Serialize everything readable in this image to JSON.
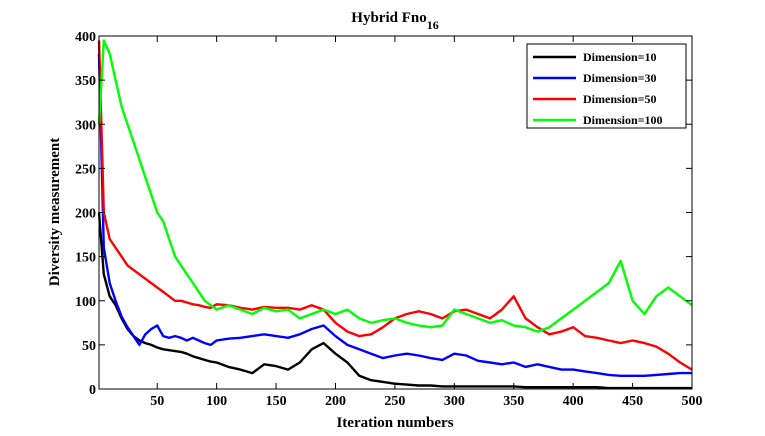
{
  "chart_data": {
    "type": "line",
    "title": "Hybrid Fno",
    "title_subscript": "16",
    "xlabel": "Iteration numbers",
    "ylabel": "Diversity measurement",
    "xlim": [
      1,
      500
    ],
    "ylim": [
      0,
      400
    ],
    "xticks": [
      "50",
      "100",
      "150",
      "200",
      "250",
      "300",
      "350",
      "400",
      "450",
      "500"
    ],
    "yticks": [
      "0",
      "50",
      "100",
      "150",
      "200",
      "250",
      "300",
      "350",
      "400"
    ],
    "legend_position": "top-right",
    "grid": false,
    "x": [
      1,
      5,
      10,
      15,
      20,
      25,
      30,
      35,
      40,
      45,
      50,
      55,
      60,
      65,
      70,
      75,
      80,
      85,
      90,
      95,
      100,
      110,
      120,
      130,
      140,
      150,
      160,
      170,
      180,
      190,
      200,
      210,
      220,
      230,
      240,
      250,
      260,
      270,
      280,
      290,
      300,
      310,
      320,
      330,
      340,
      350,
      360,
      370,
      380,
      390,
      400,
      410,
      420,
      430,
      440,
      450,
      460,
      470,
      480,
      490,
      500
    ],
    "series": [
      {
        "name": "Dimension=10",
        "color": "#000000",
        "values": [
          200,
          130,
          105,
          95,
          80,
          68,
          60,
          55,
          52,
          50,
          47,
          45,
          44,
          43,
          42,
          40,
          37,
          35,
          33,
          31,
          30,
          25,
          22,
          18,
          28,
          26,
          22,
          30,
          45,
          52,
          40,
          30,
          15,
          10,
          8,
          6,
          5,
          4,
          4,
          3,
          3,
          3,
          3,
          3,
          3,
          3,
          2,
          2,
          2,
          2,
          2,
          2,
          2,
          1,
          1,
          1,
          1,
          1,
          1,
          1,
          1
        ]
      },
      {
        "name": "Dimension=30",
        "color": "#0000ff",
        "values": [
          380,
          160,
          120,
          100,
          82,
          70,
          60,
          50,
          62,
          68,
          72,
          60,
          58,
          60,
          58,
          55,
          58,
          55,
          52,
          50,
          55,
          57,
          58,
          60,
          62,
          60,
          58,
          62,
          68,
          72,
          60,
          50,
          45,
          40,
          35,
          38,
          40,
          38,
          35,
          33,
          40,
          38,
          32,
          30,
          28,
          30,
          25,
          28,
          25,
          22,
          22,
          20,
          18,
          16,
          15,
          15,
          15,
          16,
          17,
          18,
          18
        ]
      },
      {
        "name": "Dimension=50",
        "color": "#ff0000",
        "values": [
          395,
          200,
          170,
          160,
          150,
          140,
          135,
          130,
          125,
          120,
          115,
          110,
          105,
          100,
          100,
          98,
          96,
          95,
          93,
          92,
          96,
          95,
          92,
          90,
          93,
          92,
          92,
          90,
          95,
          90,
          75,
          65,
          60,
          62,
          70,
          80,
          85,
          88,
          85,
          80,
          88,
          90,
          85,
          80,
          90,
          105,
          80,
          70,
          62,
          65,
          70,
          60,
          58,
          55,
          52,
          55,
          52,
          48,
          40,
          30,
          22
        ]
      },
      {
        "name": "Dimension=100",
        "color": "#00ff00",
        "values": [
          300,
          395,
          380,
          350,
          320,
          300,
          280,
          260,
          240,
          220,
          200,
          190,
          170,
          150,
          140,
          130,
          120,
          110,
          100,
          95,
          90,
          95,
          90,
          85,
          92,
          88,
          90,
          80,
          85,
          90,
          85,
          90,
          80,
          75,
          78,
          80,
          75,
          72,
          70,
          72,
          90,
          85,
          80,
          75,
          78,
          72,
          70,
          65,
          70,
          80,
          90,
          100,
          110,
          120,
          145,
          100,
          85,
          105,
          115,
          105,
          95
        ]
      }
    ]
  }
}
